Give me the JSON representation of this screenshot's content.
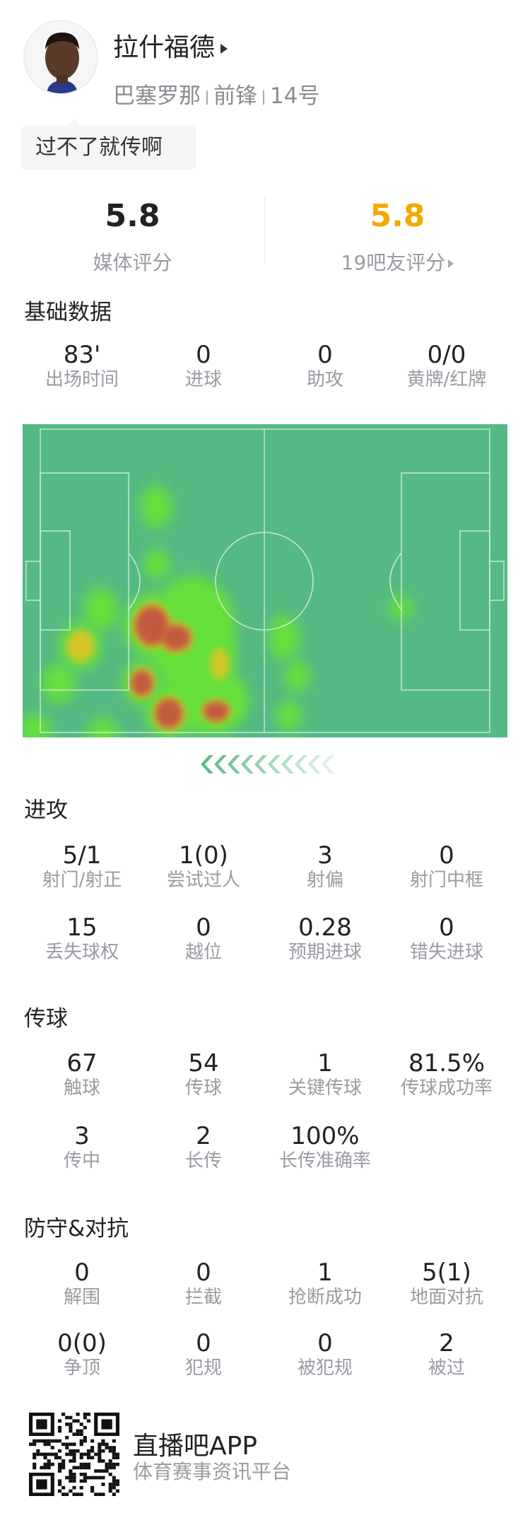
{
  "player": {
    "name": "拉什福德",
    "team": "巴塞罗那",
    "position": "前锋",
    "number": "14号",
    "comment": "过不了就传啊"
  },
  "ratings": {
    "media": {
      "value": "5.8",
      "label": "媒体评分"
    },
    "fans": {
      "value": "5.8",
      "label": "19吧友评分"
    },
    "fans_color": "#f5a800"
  },
  "basic": {
    "title": "基础数据",
    "stats": [
      {
        "v": "83'",
        "l": "出场时间"
      },
      {
        "v": "0",
        "l": "进球"
      },
      {
        "v": "0",
        "l": "助攻"
      },
      {
        "v": "0/0",
        "l": "黄牌/红牌"
      }
    ]
  },
  "attack": {
    "title": "进攻",
    "stats": [
      {
        "v": "5/1",
        "l": "射门/射正"
      },
      {
        "v": "1(0)",
        "l": "尝试过人"
      },
      {
        "v": "3",
        "l": "射偏"
      },
      {
        "v": "0",
        "l": "射门中框"
      },
      {
        "v": "15",
        "l": "丢失球权"
      },
      {
        "v": "0",
        "l": "越位"
      },
      {
        "v": "0.28",
        "l": "预期进球"
      },
      {
        "v": "0",
        "l": "错失进球"
      }
    ]
  },
  "passing": {
    "title": "传球",
    "stats": [
      {
        "v": "67",
        "l": "触球"
      },
      {
        "v": "54",
        "l": "传球"
      },
      {
        "v": "1",
        "l": "关键传球"
      },
      {
        "v": "81.5%",
        "l": "传球成功率"
      },
      {
        "v": "3",
        "l": "传中"
      },
      {
        "v": "2",
        "l": "长传"
      },
      {
        "v": "100%",
        "l": "长传准确率"
      }
    ]
  },
  "defense": {
    "title": "防守&对抗",
    "stats": [
      {
        "v": "0",
        "l": "解围"
      },
      {
        "v": "0",
        "l": "拦截"
      },
      {
        "v": "1",
        "l": "抢断成功"
      },
      {
        "v": "5(1)",
        "l": "地面对抗"
      },
      {
        "v": "0(0)",
        "l": "争顶"
      },
      {
        "v": "0",
        "l": "犯规"
      },
      {
        "v": "0",
        "l": "被犯规"
      },
      {
        "v": "2",
        "l": "被过"
      }
    ]
  },
  "heatmap": {
    "pitch_color": "#55b983",
    "attack_direction": "left"
  },
  "footer": {
    "app": "直播吧APP",
    "slogan": "体育赛事资讯平台",
    "qr_icon": "qr-code"
  }
}
